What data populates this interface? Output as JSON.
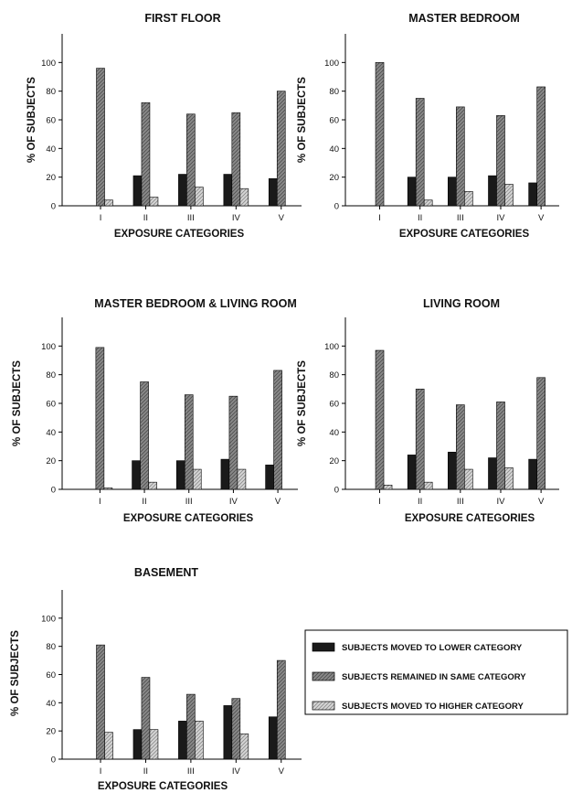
{
  "colors": {
    "lower": "#1a1a1a",
    "same": "#7a7a7a",
    "higher": "#c4c4c4",
    "axis": "#000000"
  },
  "legend": {
    "placement": "bottom-right",
    "items": [
      {
        "key": "lower",
        "label": "SUBJECTS MOVED TO LOWER CATEGORY"
      },
      {
        "key": "same",
        "label": "SUBJECTS REMAINED IN SAME CATEGORY"
      },
      {
        "key": "higher",
        "label": "SUBJECTS MOVED TO HIGHER CATEGORY"
      }
    ]
  },
  "chart_data": [
    {
      "type": "bar",
      "title": "FIRST FLOOR",
      "xlabel": "EXPOSURE CATEGORIES",
      "ylabel": "% OF SUBJECTS",
      "ylim": [
        0,
        100
      ],
      "yticks": [
        "0",
        "20",
        "40",
        "60",
        "80",
        "100"
      ],
      "categories": [
        "I",
        "II",
        "III",
        "IV",
        "V"
      ],
      "series": [
        {
          "name": "SUBJECTS MOVED TO LOWER CATEGORY",
          "key": "lower",
          "values": [
            0,
            21,
            22,
            22,
            19
          ]
        },
        {
          "name": "SUBJECTS REMAINED IN SAME CATEGORY",
          "key": "same",
          "values": [
            96,
            72,
            64,
            65,
            80
          ]
        },
        {
          "name": "SUBJECTS MOVED TO HIGHER CATEGORY",
          "key": "higher",
          "values": [
            4,
            6,
            13,
            12,
            0
          ]
        }
      ]
    },
    {
      "type": "bar",
      "title": "MASTER BEDROOM",
      "xlabel": "EXPOSURE CATEGORIES",
      "ylabel": "% OF SUBJECTS",
      "ylim": [
        0,
        100
      ],
      "yticks": [
        "0",
        "20",
        "40",
        "60",
        "80",
        "100"
      ],
      "categories": [
        "I",
        "II",
        "III",
        "IV",
        "V"
      ],
      "series": [
        {
          "name": "SUBJECTS MOVED TO LOWER CATEGORY",
          "key": "lower",
          "values": [
            0,
            20,
            20,
            21,
            16
          ]
        },
        {
          "name": "SUBJECTS REMAINED IN SAME CATEGORY",
          "key": "same",
          "values": [
            100,
            75,
            69,
            63,
            83
          ]
        },
        {
          "name": "SUBJECTS MOVED TO HIGHER CATEGORY",
          "key": "higher",
          "values": [
            0,
            4,
            10,
            15,
            0
          ]
        }
      ]
    },
    {
      "type": "bar",
      "title": "MASTER BEDROOM & LIVING ROOM",
      "xlabel": "EXPOSURE CATEGORIES",
      "ylabel": "% OF SUBJECTS",
      "ylim": [
        0,
        100
      ],
      "yticks": [
        "0",
        "20",
        "40",
        "60",
        "80",
        "100"
      ],
      "categories": [
        "I",
        "II",
        "III",
        "IV",
        "V"
      ],
      "series": [
        {
          "name": "SUBJECTS MOVED TO LOWER CATEGORY",
          "key": "lower",
          "values": [
            0,
            20,
            20,
            21,
            17
          ]
        },
        {
          "name": "SUBJECTS REMAINED IN SAME CATEGORY",
          "key": "same",
          "values": [
            99,
            75,
            66,
            65,
            83
          ]
        },
        {
          "name": "SUBJECTS MOVED TO HIGHER CATEGORY",
          "key": "higher",
          "values": [
            1,
            5,
            14,
            14,
            0
          ]
        }
      ]
    },
    {
      "type": "bar",
      "title": "LIVING ROOM",
      "xlabel": "EXPOSURE CATEGORIES",
      "ylabel": "% OF SUBJECTS",
      "ylim": [
        0,
        100
      ],
      "yticks": [
        "0",
        "20",
        "40",
        "60",
        "80",
        "100"
      ],
      "categories": [
        "I",
        "II",
        "III",
        "IV",
        "V"
      ],
      "series": [
        {
          "name": "SUBJECTS MOVED TO LOWER CATEGORY",
          "key": "lower",
          "values": [
            0,
            24,
            26,
            22,
            21
          ]
        },
        {
          "name": "SUBJECTS REMAINED IN SAME CATEGORY",
          "key": "same",
          "values": [
            97,
            70,
            59,
            61,
            78
          ]
        },
        {
          "name": "SUBJECTS MOVED TO HIGHER CATEGORY",
          "key": "higher",
          "values": [
            3,
            5,
            14,
            15,
            0
          ]
        }
      ]
    },
    {
      "type": "bar",
      "title": "BASEMENT",
      "xlabel": "EXPOSURE CATEGORIES",
      "ylabel": "% OF SUBJECTS",
      "ylim": [
        0,
        100
      ],
      "yticks": [
        "0",
        "20",
        "40",
        "60",
        "80",
        "100"
      ],
      "categories": [
        "I",
        "II",
        "III",
        "IV",
        "V"
      ],
      "series": [
        {
          "name": "SUBJECTS MOVED TO LOWER CATEGORY",
          "key": "lower",
          "values": [
            0,
            21,
            27,
            38,
            30
          ]
        },
        {
          "name": "SUBJECTS REMAINED IN SAME CATEGORY",
          "key": "same",
          "values": [
            81,
            58,
            46,
            43,
            70
          ]
        },
        {
          "name": "SUBJECTS MOVED TO HIGHER CATEGORY",
          "key": "higher",
          "values": [
            19,
            21,
            27,
            18,
            0
          ]
        }
      ]
    }
  ]
}
